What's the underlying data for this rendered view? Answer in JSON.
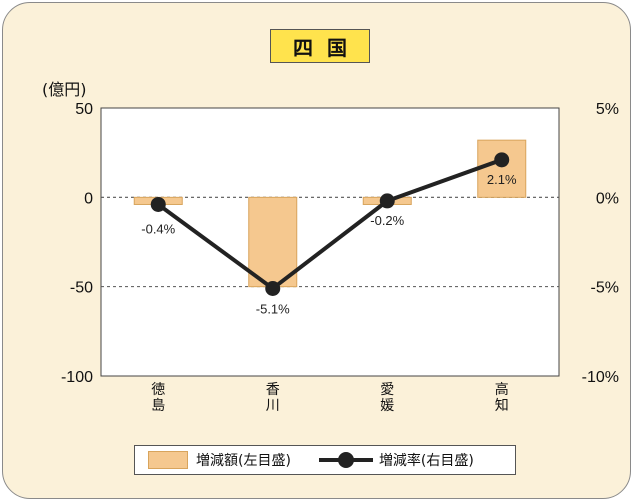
{
  "title": "四国",
  "unit_label": "(億円)",
  "legend": {
    "bar_label": "増減額(左目盛)",
    "line_label": "増減率(右目盛)"
  },
  "colors": {
    "bar_fill": "#f5c88f",
    "bar_stroke": "#d8a45c",
    "line": "#222222",
    "panel_bg": "#fbf1d9",
    "title_bg": "#ffe34d"
  },
  "chart_data": {
    "type": "bar",
    "categories": [
      "徳島",
      "香川",
      "愛媛",
      "高知"
    ],
    "category_labels": [
      [
        "徳",
        "島"
      ],
      [
        "香",
        "川"
      ],
      [
        "愛",
        "媛"
      ],
      [
        "高",
        "知"
      ]
    ],
    "series": [
      {
        "name": "増減額(左目盛)",
        "type": "bar",
        "axis": "left",
        "values": [
          -4,
          -50,
          -4,
          32
        ]
      },
      {
        "name": "増減率(右目盛)",
        "type": "line",
        "axis": "right",
        "values": [
          -0.4,
          -5.1,
          -0.2,
          2.1
        ],
        "labels": [
          "-0.4%",
          "-5.1%",
          "-0.2%",
          "2.1%"
        ]
      }
    ],
    "left_axis": {
      "ylim": [
        -100,
        50
      ],
      "ticks": [
        50,
        0,
        -50,
        -100
      ],
      "tick_labels": [
        "50",
        "0",
        "-50",
        "-100"
      ]
    },
    "right_axis": {
      "ylim": [
        -10,
        5
      ],
      "ticks": [
        5,
        0,
        -5,
        -10
      ],
      "tick_labels": [
        "5%",
        "0%",
        "-5%",
        "-10%"
      ]
    },
    "reference_lines": [
      0,
      -50
    ],
    "legend_position": "bottom"
  }
}
